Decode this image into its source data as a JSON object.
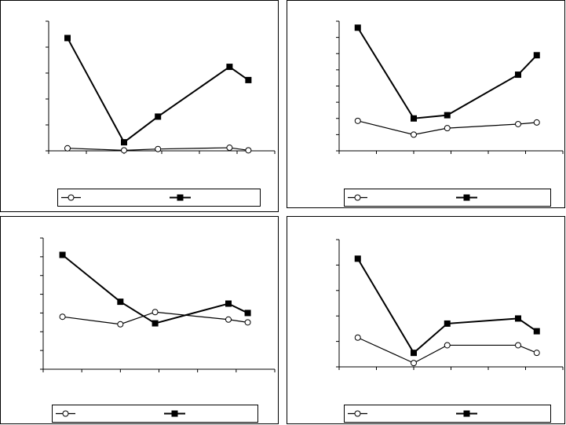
{
  "chart_data": [
    {
      "type": "line",
      "title": "",
      "xlabel": "",
      "ylabel": "",
      "x": [
        5,
        20,
        29,
        48,
        53
      ],
      "xlim": [
        0,
        60
      ],
      "xticks": 6,
      "ylim": [
        0,
        5
      ],
      "yticks": 5,
      "grid": false,
      "legend_position": "bottom",
      "series": [
        {
          "name": "",
          "marker": "circle-open",
          "values": [
            0.1,
            0.02,
            0.07,
            0.12,
            0.02
          ]
        },
        {
          "name": "",
          "marker": "square-filled",
          "values": [
            4.35,
            0.33,
            1.32,
            3.24,
            2.73
          ]
        }
      ]
    },
    {
      "type": "line",
      "title": "",
      "xlabel": "",
      "ylabel": "",
      "x": [
        5,
        20,
        29,
        48,
        53
      ],
      "xlim": [
        0,
        60
      ],
      "xticks": 6,
      "ylim": [
        0,
        8
      ],
      "yticks": 8,
      "grid": false,
      "legend_position": "bottom",
      "series": [
        {
          "name": "",
          "marker": "circle-open",
          "values": [
            1.85,
            1.0,
            1.4,
            1.65,
            1.75
          ]
        },
        {
          "name": "",
          "marker": "square-filled",
          "values": [
            7.6,
            2.0,
            2.2,
            4.7,
            5.9
          ]
        }
      ]
    },
    {
      "type": "line",
      "title": "",
      "xlabel": "",
      "ylabel": "",
      "x": [
        5,
        20,
        29,
        48,
        53
      ],
      "xlim": [
        0,
        60
      ],
      "xticks": 6,
      "ylim": [
        0,
        7
      ],
      "yticks": 7,
      "grid": false,
      "legend_position": "bottom",
      "series": [
        {
          "name": "",
          "marker": "circle-open",
          "values": [
            2.8,
            2.4,
            3.05,
            2.65,
            2.5
          ]
        },
        {
          "name": "",
          "marker": "square-filled",
          "values": [
            6.1,
            3.6,
            2.45,
            3.5,
            3.0
          ]
        }
      ]
    },
    {
      "type": "line",
      "title": "",
      "xlabel": "",
      "ylabel": "",
      "x": [
        5,
        20,
        29,
        48,
        53
      ],
      "xlim": [
        0,
        60
      ],
      "xticks": 6,
      "ylim": [
        0,
        5
      ],
      "yticks": 5,
      "grid": false,
      "legend_position": "bottom",
      "series": [
        {
          "name": "",
          "marker": "circle-open",
          "values": [
            1.15,
            0.15,
            0.85,
            0.85,
            0.55
          ]
        },
        {
          "name": "",
          "marker": "square-filled",
          "values": [
            4.25,
            0.55,
            1.7,
            1.9,
            1.4
          ]
        }
      ]
    }
  ]
}
